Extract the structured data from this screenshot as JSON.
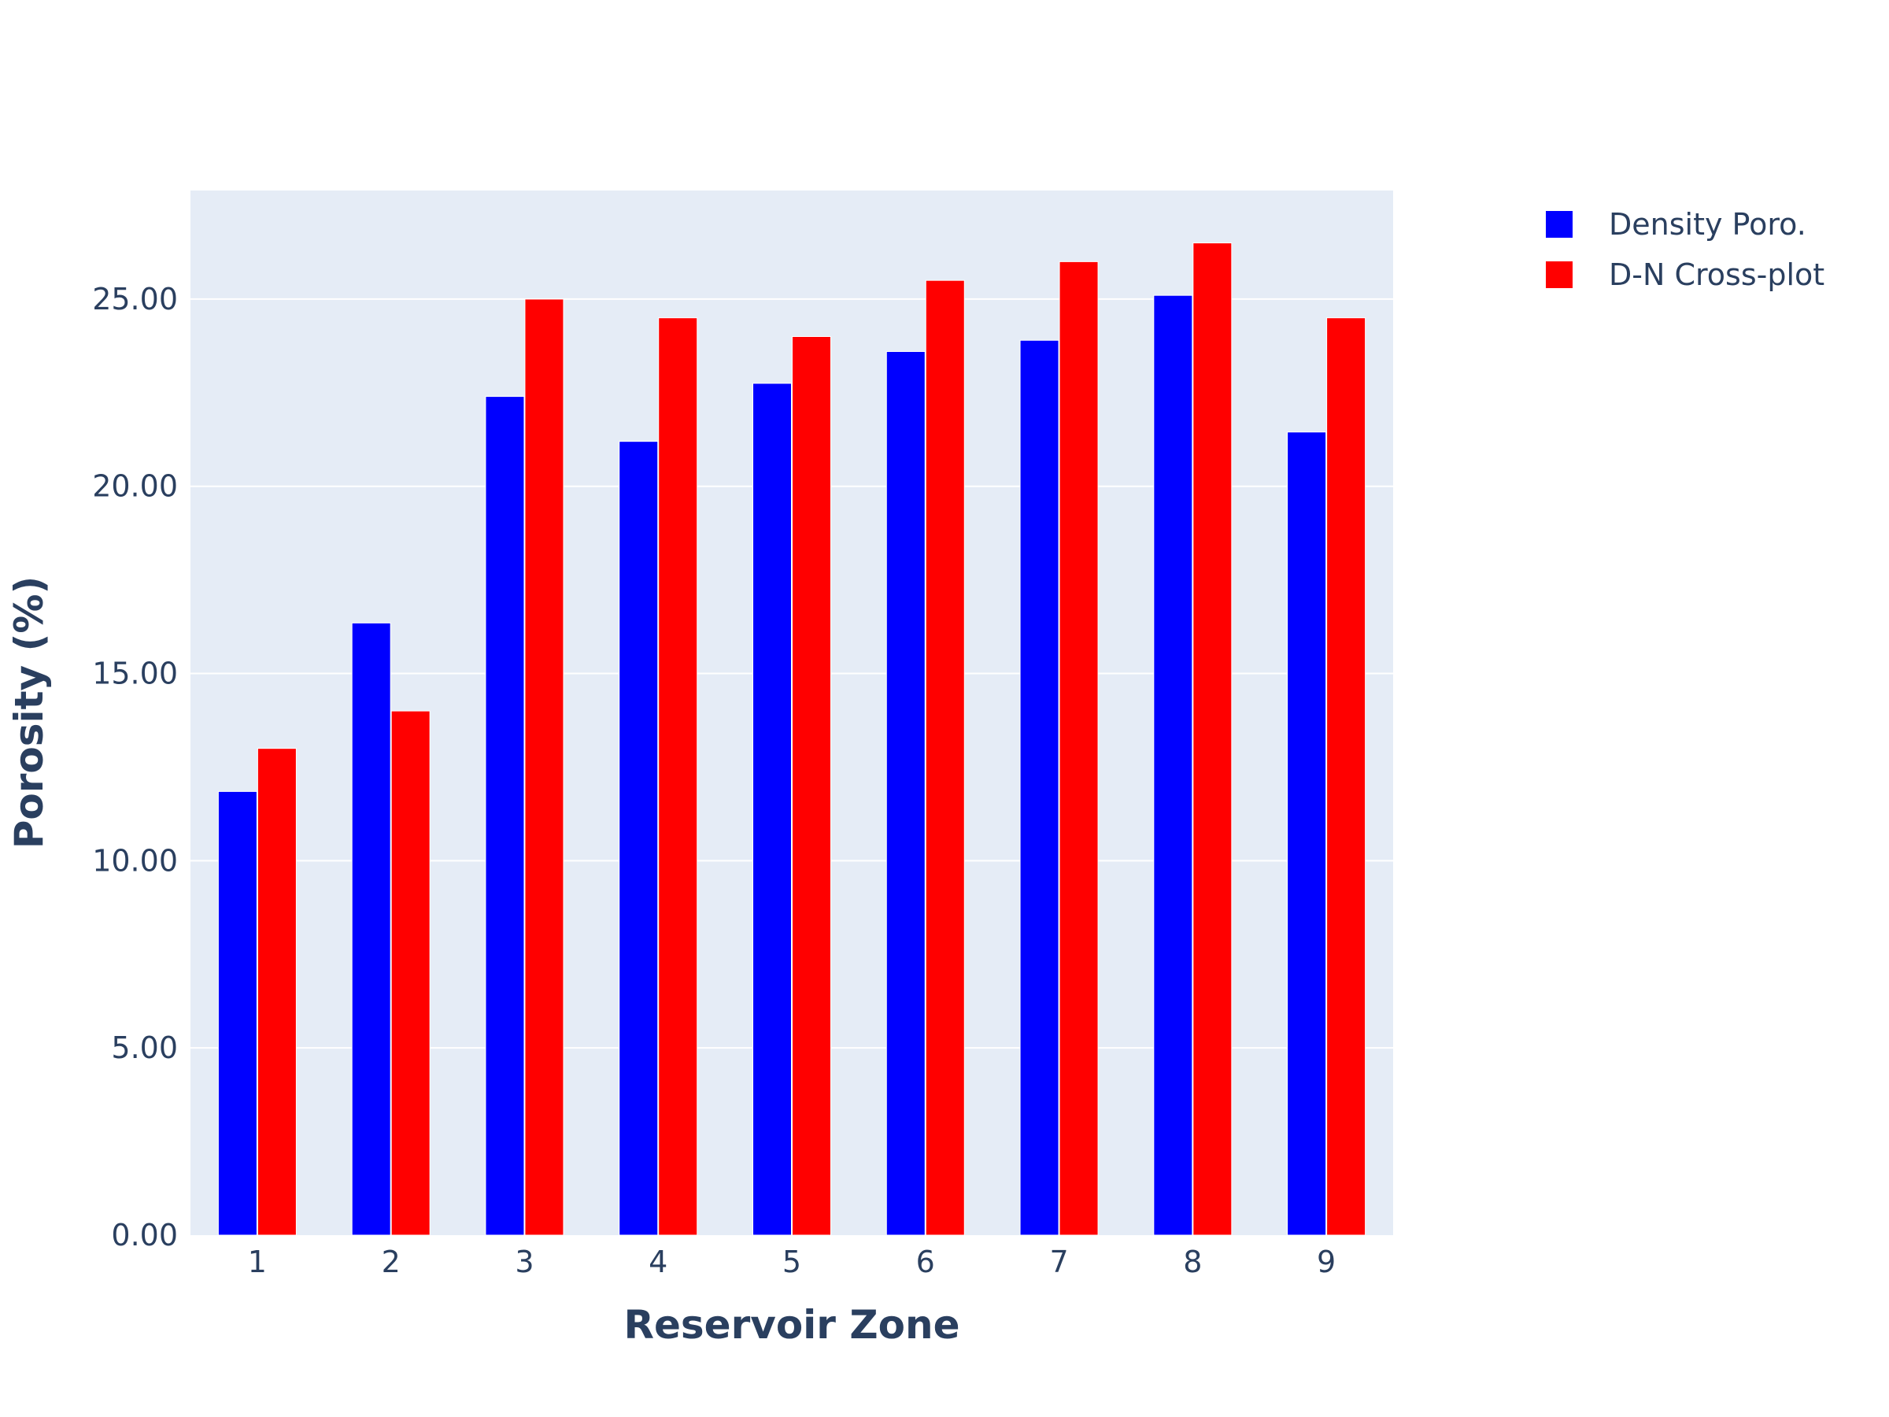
{
  "chart_data": {
    "type": "bar",
    "categories": [
      "1",
      "2",
      "3",
      "4",
      "5",
      "6",
      "7",
      "8",
      "9"
    ],
    "series": [
      {
        "name": "Density Poro.",
        "color": "#0000ff",
        "values": [
          11.85,
          16.35,
          22.4,
          21.2,
          22.75,
          23.6,
          23.9,
          25.1,
          21.45
        ]
      },
      {
        "name": "D-N Cross-plot",
        "color": "#ff0000",
        "values": [
          13.0,
          14.0,
          25.0,
          24.5,
          24.0,
          25.5,
          26.0,
          26.5,
          24.5
        ]
      }
    ],
    "xlabel": "Reservoir Zone",
    "ylabel": "Porosity (%)",
    "ylim": [
      0,
      27.9
    ],
    "yticks": [
      0,
      5,
      10,
      15,
      20,
      25
    ],
    "ytick_labels": [
      "0.00",
      "5.00",
      "10.00",
      "15.00",
      "20.00",
      "25.00"
    ],
    "grid": true,
    "legend_position": "top-right",
    "plot_background": "#e5ecf6",
    "grid_color": "#ffffff"
  }
}
